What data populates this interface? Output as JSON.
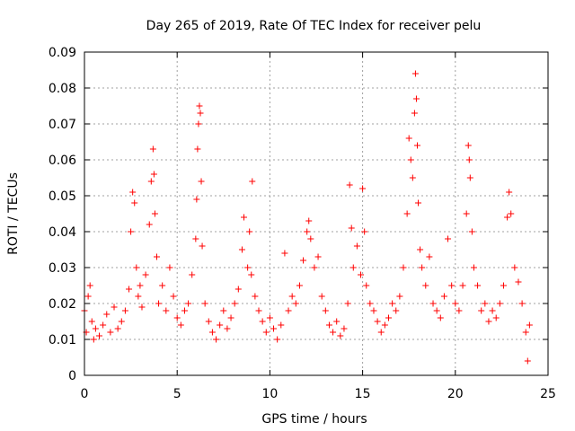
{
  "chart_data": {
    "type": "scatter",
    "title": "Day 265 of 2019, Rate Of TEC Index for receiver pelu",
    "xlabel": "GPS time / hours",
    "ylabel": "ROTI / TECUs",
    "xlim": [
      0,
      25
    ],
    "ylim": [
      0,
      0.09
    ],
    "x_ticks": [
      0,
      5,
      10,
      15,
      20,
      25
    ],
    "x_tick_labels": [
      "0",
      "5",
      "10",
      "15",
      "20",
      "25"
    ],
    "y_ticks": [
      0,
      0.01,
      0.02,
      0.03,
      0.04,
      0.05,
      0.06,
      0.07,
      0.08,
      0.09
    ],
    "y_tick_labels": [
      "0",
      "0.01",
      "0.02",
      "0.03",
      "0.04",
      "0.05",
      "0.06",
      "0.07",
      "0.08",
      "0.09"
    ],
    "grid": true,
    "marker": "+",
    "series": [
      {
        "name": "ROTI",
        "color": "#ff0000",
        "points": [
          [
            0.0,
            0.018
          ],
          [
            0.1,
            0.012
          ],
          [
            0.2,
            0.022
          ],
          [
            0.3,
            0.025
          ],
          [
            0.4,
            0.015
          ],
          [
            0.5,
            0.01
          ],
          [
            0.6,
            0.013
          ],
          [
            0.8,
            0.011
          ],
          [
            1.0,
            0.014
          ],
          [
            1.2,
            0.017
          ],
          [
            1.4,
            0.012
          ],
          [
            1.6,
            0.019
          ],
          [
            1.8,
            0.013
          ],
          [
            2.0,
            0.015
          ],
          [
            2.2,
            0.018
          ],
          [
            2.4,
            0.024
          ],
          [
            2.5,
            0.04
          ],
          [
            2.6,
            0.051
          ],
          [
            2.7,
            0.048
          ],
          [
            2.8,
            0.03
          ],
          [
            2.9,
            0.022
          ],
          [
            3.0,
            0.025
          ],
          [
            3.1,
            0.019
          ],
          [
            3.3,
            0.028
          ],
          [
            3.5,
            0.042
          ],
          [
            3.6,
            0.054
          ],
          [
            3.7,
            0.063
          ],
          [
            3.75,
            0.056
          ],
          [
            3.8,
            0.045
          ],
          [
            3.9,
            0.033
          ],
          [
            4.0,
            0.02
          ],
          [
            4.2,
            0.025
          ],
          [
            4.4,
            0.018
          ],
          [
            4.6,
            0.03
          ],
          [
            4.8,
            0.022
          ],
          [
            5.0,
            0.016
          ],
          [
            5.2,
            0.014
          ],
          [
            5.4,
            0.018
          ],
          [
            5.6,
            0.02
          ],
          [
            5.8,
            0.028
          ],
          [
            6.0,
            0.038
          ],
          [
            6.05,
            0.049
          ],
          [
            6.1,
            0.063
          ],
          [
            6.15,
            0.07
          ],
          [
            6.2,
            0.075
          ],
          [
            6.25,
            0.073
          ],
          [
            6.3,
            0.054
          ],
          [
            6.35,
            0.036
          ],
          [
            6.5,
            0.02
          ],
          [
            6.7,
            0.015
          ],
          [
            6.9,
            0.012
          ],
          [
            7.1,
            0.01
          ],
          [
            7.3,
            0.014
          ],
          [
            7.5,
            0.018
          ],
          [
            7.7,
            0.013
          ],
          [
            7.9,
            0.016
          ],
          [
            8.1,
            0.02
          ],
          [
            8.3,
            0.024
          ],
          [
            8.5,
            0.035
          ],
          [
            8.6,
            0.044
          ],
          [
            8.8,
            0.03
          ],
          [
            8.9,
            0.04
          ],
          [
            9.0,
            0.028
          ],
          [
            9.05,
            0.054
          ],
          [
            9.2,
            0.022
          ],
          [
            9.4,
            0.018
          ],
          [
            9.6,
            0.015
          ],
          [
            9.8,
            0.012
          ],
          [
            10.0,
            0.016
          ],
          [
            10.2,
            0.013
          ],
          [
            10.4,
            0.01
          ],
          [
            10.6,
            0.014
          ],
          [
            10.8,
            0.034
          ],
          [
            11.0,
            0.018
          ],
          [
            11.2,
            0.022
          ],
          [
            11.4,
            0.02
          ],
          [
            11.6,
            0.025
          ],
          [
            11.8,
            0.032
          ],
          [
            12.0,
            0.04
          ],
          [
            12.1,
            0.043
          ],
          [
            12.2,
            0.038
          ],
          [
            12.4,
            0.03
          ],
          [
            12.6,
            0.033
          ],
          [
            12.8,
            0.022
          ],
          [
            13.0,
            0.018
          ],
          [
            13.2,
            0.014
          ],
          [
            13.4,
            0.012
          ],
          [
            13.6,
            0.015
          ],
          [
            13.8,
            0.011
          ],
          [
            14.0,
            0.013
          ],
          [
            14.2,
            0.02
          ],
          [
            14.3,
            0.053
          ],
          [
            14.4,
            0.041
          ],
          [
            14.5,
            0.03
          ],
          [
            14.7,
            0.036
          ],
          [
            14.9,
            0.028
          ],
          [
            15.0,
            0.052
          ],
          [
            15.1,
            0.04
          ],
          [
            15.2,
            0.025
          ],
          [
            15.4,
            0.02
          ],
          [
            15.6,
            0.018
          ],
          [
            15.8,
            0.015
          ],
          [
            16.0,
            0.012
          ],
          [
            16.2,
            0.014
          ],
          [
            16.4,
            0.016
          ],
          [
            16.6,
            0.02
          ],
          [
            16.8,
            0.018
          ],
          [
            17.0,
            0.022
          ],
          [
            17.2,
            0.03
          ],
          [
            17.4,
            0.045
          ],
          [
            17.5,
            0.066
          ],
          [
            17.6,
            0.06
          ],
          [
            17.7,
            0.055
          ],
          [
            17.8,
            0.073
          ],
          [
            17.85,
            0.084
          ],
          [
            17.9,
            0.077
          ],
          [
            17.95,
            0.064
          ],
          [
            18.0,
            0.048
          ],
          [
            18.1,
            0.035
          ],
          [
            18.2,
            0.03
          ],
          [
            18.4,
            0.025
          ],
          [
            18.6,
            0.033
          ],
          [
            18.8,
            0.02
          ],
          [
            19.0,
            0.018
          ],
          [
            19.2,
            0.016
          ],
          [
            19.4,
            0.022
          ],
          [
            19.6,
            0.038
          ],
          [
            19.8,
            0.025
          ],
          [
            20.0,
            0.02
          ],
          [
            20.2,
            0.018
          ],
          [
            20.4,
            0.025
          ],
          [
            20.6,
            0.045
          ],
          [
            20.7,
            0.064
          ],
          [
            20.75,
            0.06
          ],
          [
            20.8,
            0.055
          ],
          [
            20.9,
            0.04
          ],
          [
            21.0,
            0.03
          ],
          [
            21.2,
            0.025
          ],
          [
            21.4,
            0.018
          ],
          [
            21.6,
            0.02
          ],
          [
            21.8,
            0.015
          ],
          [
            22.0,
            0.018
          ],
          [
            22.2,
            0.016
          ],
          [
            22.4,
            0.02
          ],
          [
            22.6,
            0.025
          ],
          [
            22.8,
            0.044
          ],
          [
            22.9,
            0.051
          ],
          [
            23.0,
            0.045
          ],
          [
            23.2,
            0.03
          ],
          [
            23.4,
            0.026
          ],
          [
            23.6,
            0.02
          ],
          [
            23.8,
            0.012
          ],
          [
            23.9,
            0.004
          ],
          [
            24.0,
            0.014
          ]
        ]
      }
    ]
  }
}
